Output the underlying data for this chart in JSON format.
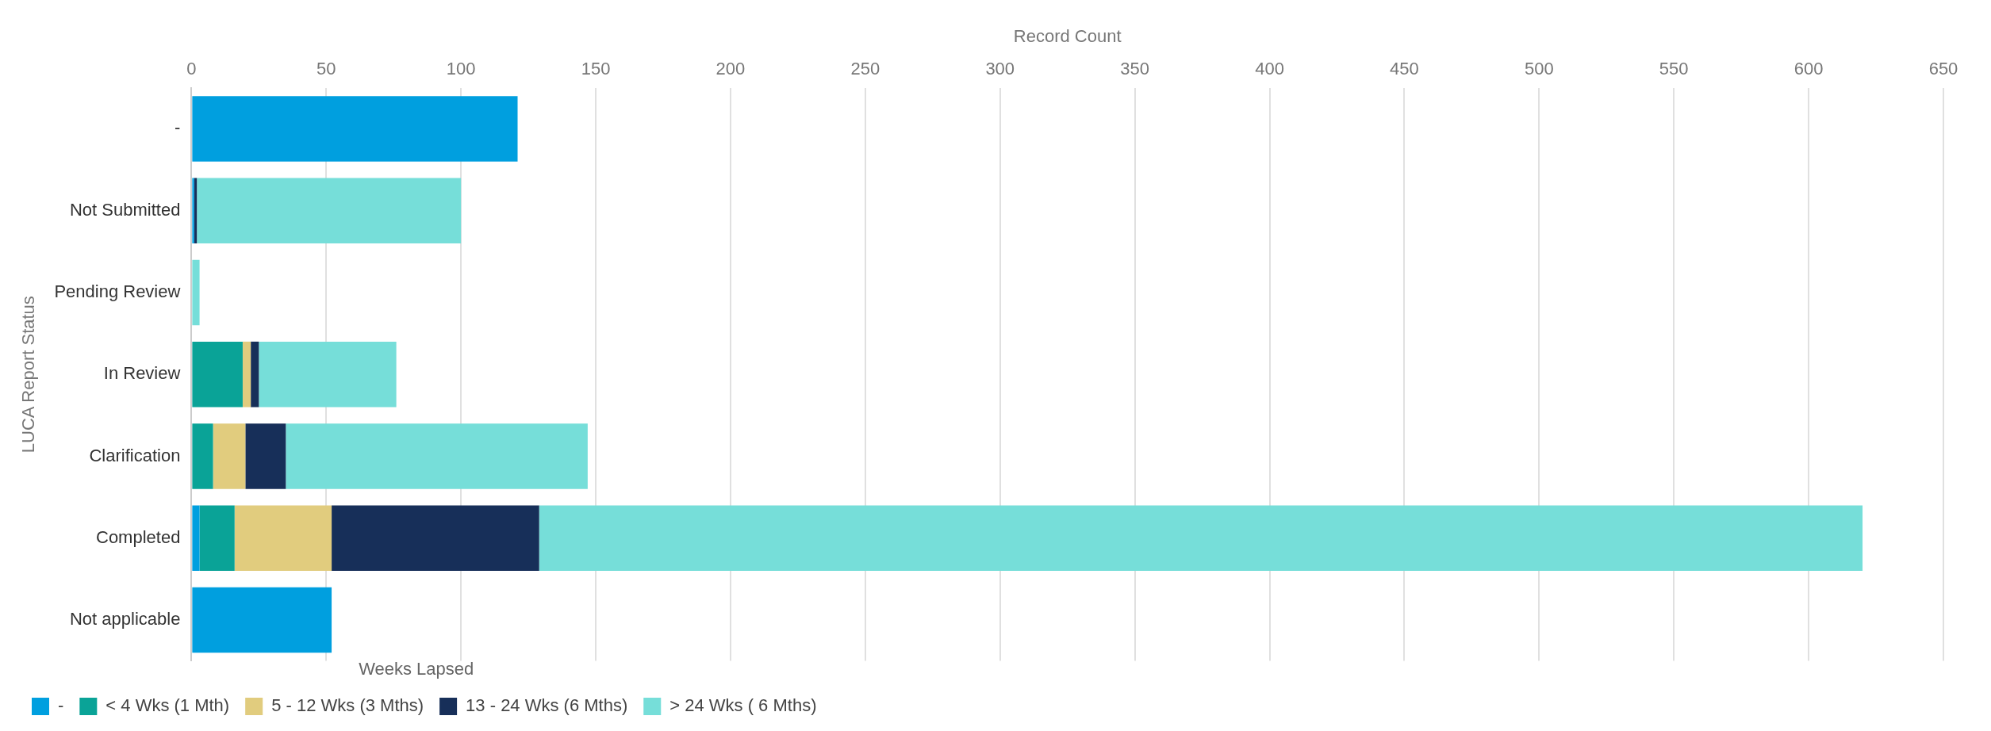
{
  "chart_data": {
    "type": "bar",
    "orientation": "horizontal",
    "stacked": true,
    "xlabel": "Record Count",
    "ylabel": "LUCA Report Status",
    "legend_title": "Weeks Lapsed",
    "legend": "bottom left",
    "grid": "x",
    "categories": [
      "-",
      "Not Submitted",
      "Pending Review",
      "In Review",
      "Clarification",
      "Completed",
      "Not applicable"
    ],
    "xlim": [
      0,
      650
    ],
    "xticks": [
      0,
      50,
      100,
      150,
      200,
      250,
      300,
      350,
      400,
      450,
      500,
      550,
      600,
      650
    ],
    "series": [
      {
        "name": "-",
        "color": "#009fdf",
        "values": [
          121,
          1,
          null,
          null,
          null,
          3,
          52
        ]
      },
      {
        "name": "< 4 Wks (1 Mth)",
        "color": "#0aa397",
        "values": [
          null,
          null,
          null,
          19,
          8,
          13,
          null
        ]
      },
      {
        "name": "5 - 12 Wks (3 Mths)",
        "color": "#e1cc7e",
        "values": [
          null,
          null,
          null,
          3,
          12,
          36,
          null
        ]
      },
      {
        "name": "13 - 24 Wks (6 Mths)",
        "color": "#172f59",
        "values": [
          null,
          1,
          null,
          3,
          15,
          77,
          null
        ]
      },
      {
        "name": "> 24 Wks ( 6 Mths)",
        "color": "#76ded9",
        "values": [
          null,
          98,
          3,
          51,
          112,
          491,
          null
        ]
      }
    ]
  }
}
